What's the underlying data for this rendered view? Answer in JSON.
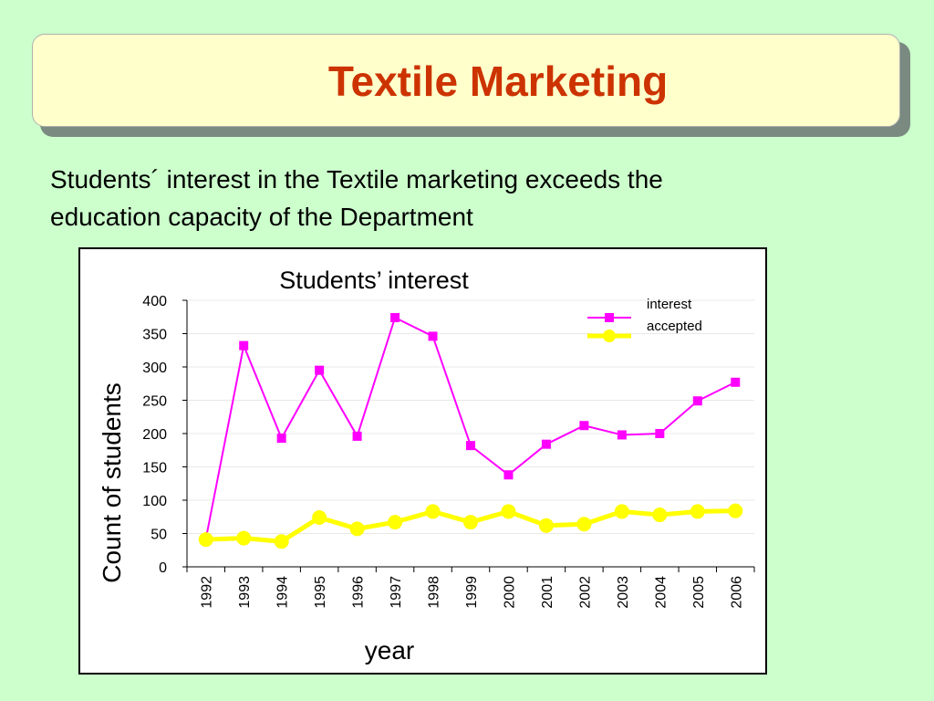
{
  "slide": {
    "title": "Textile Marketing",
    "intro_line1": "Students´ interest in the Textile marketing  exceeds the",
    "intro_line2": "education capacity of the Department"
  },
  "colors": {
    "background": "#ccffcc",
    "title_box": "#ffffcc",
    "title_text": "#cc3300",
    "interest": "#ff00ff",
    "accepted": "#ffff00"
  },
  "chart_data": {
    "type": "line",
    "title": "Students’ interest",
    "xlabel": "year",
    "ylabel": "Count of students",
    "ylim": [
      0,
      400
    ],
    "yticks": [
      "0",
      "50",
      "100",
      "150",
      "200",
      "250",
      "300",
      "350",
      "400"
    ],
    "categories": [
      "1992",
      "1993",
      "1994",
      "1995",
      "1996",
      "1997",
      "1998",
      "1999",
      "2000",
      "2001",
      "2002",
      "2003",
      "2004",
      "2005",
      "2006"
    ],
    "series": [
      {
        "name": "interest",
        "marker": "square",
        "color": "#ff00ff",
        "values": [
          42,
          332,
          193,
          295,
          196,
          374,
          346,
          182,
          138,
          184,
          212,
          198,
          200,
          249,
          277
        ]
      },
      {
        "name": "accepted",
        "marker": "circle",
        "color": "#ffff00",
        "values": [
          41,
          43,
          38,
          74,
          57,
          67,
          83,
          67,
          83,
          62,
          64,
          83,
          78,
          83,
          84
        ]
      }
    ],
    "grid": true,
    "legend": "top-right"
  }
}
